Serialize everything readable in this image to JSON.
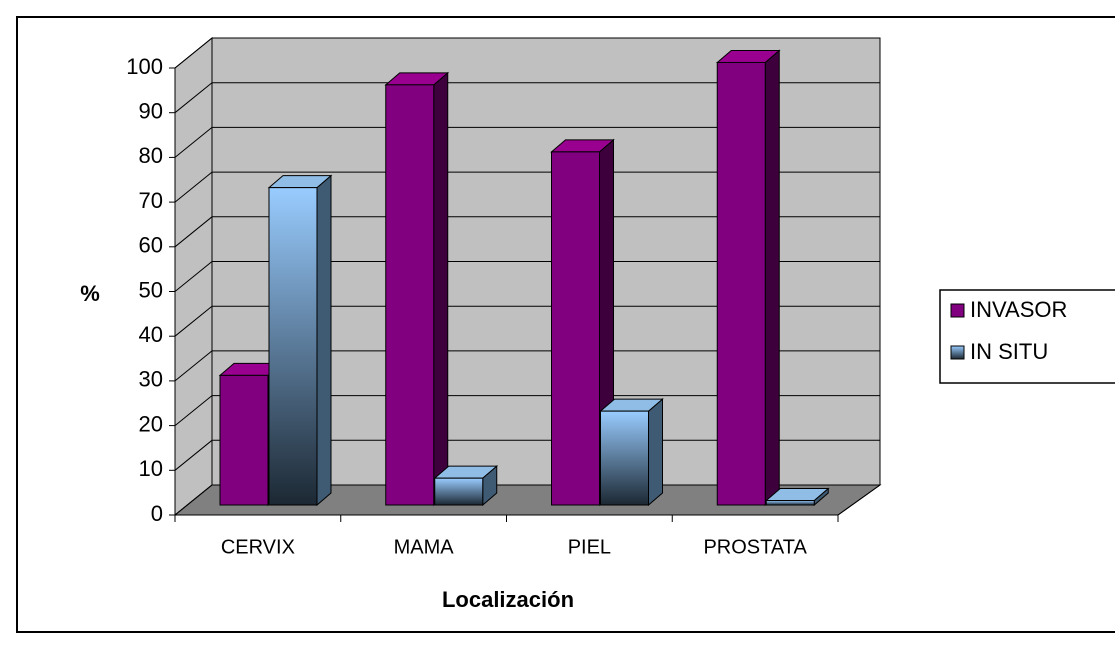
{
  "chart_data": {
    "type": "bar3d",
    "x_label": "Localización",
    "y_label": "%",
    "categories": [
      "CERVIX",
      "MAMA",
      "PIEL",
      "PROSTATA"
    ],
    "series": [
      {
        "name": "INVASOR",
        "color": "#800080",
        "values": [
          29,
          94,
          79,
          99
        ]
      },
      {
        "name": "IN SITU",
        "color": "#99ccff",
        "values": [
          71,
          6,
          21,
          1
        ]
      }
    ],
    "ylim": [
      0,
      100
    ],
    "yticks": [
      0,
      10,
      20,
      30,
      40,
      50,
      60,
      70,
      80,
      90,
      100
    ],
    "grid": true,
    "legend": "right"
  }
}
